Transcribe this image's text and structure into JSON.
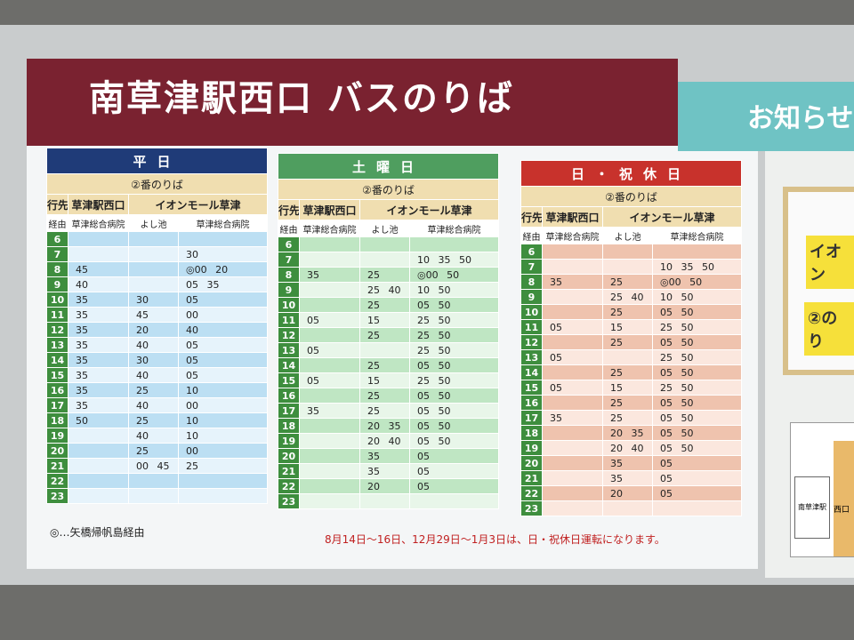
{
  "header": {
    "title": "南草津駅西口 バスのりば",
    "notice": "お知らせ"
  },
  "timetables": [
    {
      "day": "平日",
      "platform": "②番のりば",
      "label_dest": "行先",
      "label_via": "経由",
      "destinations": [
        "草津駅西口",
        "イオンモール草津"
      ],
      "vias": [
        "草津総合病院",
        "よし池",
        "草津総合病院"
      ],
      "rows": [
        [
          6,
          null,
          null,
          null
        ],
        [
          7,
          null,
          null,
          "30"
        ],
        [
          8,
          "45",
          null,
          "◎00 20"
        ],
        [
          9,
          "40",
          null,
          "05 35"
        ],
        [
          10,
          "35",
          "30",
          "05"
        ],
        [
          11,
          "35",
          "45",
          "00"
        ],
        [
          12,
          "35",
          "20",
          "40"
        ],
        [
          13,
          "35",
          "40",
          "05"
        ],
        [
          14,
          "35",
          "30",
          "05"
        ],
        [
          15,
          "35",
          "40",
          "05"
        ],
        [
          16,
          "35",
          "25",
          "10"
        ],
        [
          17,
          "35",
          "40",
          "00"
        ],
        [
          18,
          "50",
          "25",
          "10"
        ],
        [
          19,
          null,
          "40",
          "10"
        ],
        [
          20,
          null,
          "25",
          "00"
        ],
        [
          21,
          null,
          "00 45",
          "25"
        ],
        [
          22,
          null,
          null,
          null
        ],
        [
          23,
          null,
          null,
          null
        ]
      ]
    },
    {
      "day": "土曜日",
      "platform": "②番のりば",
      "label_dest": "行先",
      "label_via": "経由",
      "destinations": [
        "草津駅西口",
        "イオンモール草津"
      ],
      "vias": [
        "草津総合病院",
        "よし池",
        "草津総合病院"
      ],
      "rows": [
        [
          6,
          null,
          null,
          null
        ],
        [
          7,
          null,
          null,
          "10 35 50"
        ],
        [
          8,
          "35",
          "25",
          "◎00 50"
        ],
        [
          9,
          null,
          "25 40",
          "10 50"
        ],
        [
          10,
          null,
          "25",
          "05 50"
        ],
        [
          11,
          "05",
          "15",
          "25 50"
        ],
        [
          12,
          null,
          "25",
          "25 50"
        ],
        [
          13,
          "05",
          null,
          "25 50"
        ],
        [
          14,
          null,
          "25",
          "05 50"
        ],
        [
          15,
          "05",
          "15",
          "25 50"
        ],
        [
          16,
          null,
          "25",
          "05 50"
        ],
        [
          17,
          "35",
          "25",
          "05 50"
        ],
        [
          18,
          null,
          "20 35",
          "05 50"
        ],
        [
          19,
          null,
          "20 40",
          "05 50"
        ],
        [
          20,
          null,
          "35",
          "05"
        ],
        [
          21,
          null,
          "35",
          "05"
        ],
        [
          22,
          null,
          "20",
          "05"
        ],
        [
          23,
          null,
          null,
          null
        ]
      ]
    },
    {
      "day": "日・祝休日",
      "platform": "②番のりば",
      "label_dest": "行先",
      "label_via": "経由",
      "destinations": [
        "草津駅西口",
        "イオンモール草津"
      ],
      "vias": [
        "草津総合病院",
        "よし池",
        "草津総合病院"
      ],
      "rows": [
        [
          6,
          null,
          null,
          null
        ],
        [
          7,
          null,
          null,
          "10 35 50"
        ],
        [
          8,
          "35",
          "25",
          "◎00 50"
        ],
        [
          9,
          null,
          "25 40",
          "10 50"
        ],
        [
          10,
          null,
          "25",
          "05 50"
        ],
        [
          11,
          "05",
          "15",
          "25 50"
        ],
        [
          12,
          null,
          "25",
          "05 50"
        ],
        [
          13,
          "05",
          null,
          "25 50"
        ],
        [
          14,
          null,
          "25",
          "05 50"
        ],
        [
          15,
          "05",
          "15",
          "25 50"
        ],
        [
          16,
          null,
          "25",
          "05 50"
        ],
        [
          17,
          "35",
          "25",
          "05 50"
        ],
        [
          18,
          null,
          "20 35",
          "05 50"
        ],
        [
          19,
          null,
          "20 40",
          "05 50"
        ],
        [
          20,
          null,
          "35",
          "05"
        ],
        [
          21,
          null,
          "35",
          "05"
        ],
        [
          22,
          null,
          "20",
          "05"
        ],
        [
          23,
          null,
          null,
          null
        ]
      ]
    }
  ],
  "footnote": "◎…矢橋帰帆島経由",
  "holiday_note": "8月14日～16日、12月29日～1月3日は、日・祝休日運転になります。",
  "side_panel": {
    "sign_1": "イオン",
    "sign_2": "②のり",
    "map_station": "南草津駅",
    "map_exit": "西口"
  }
}
